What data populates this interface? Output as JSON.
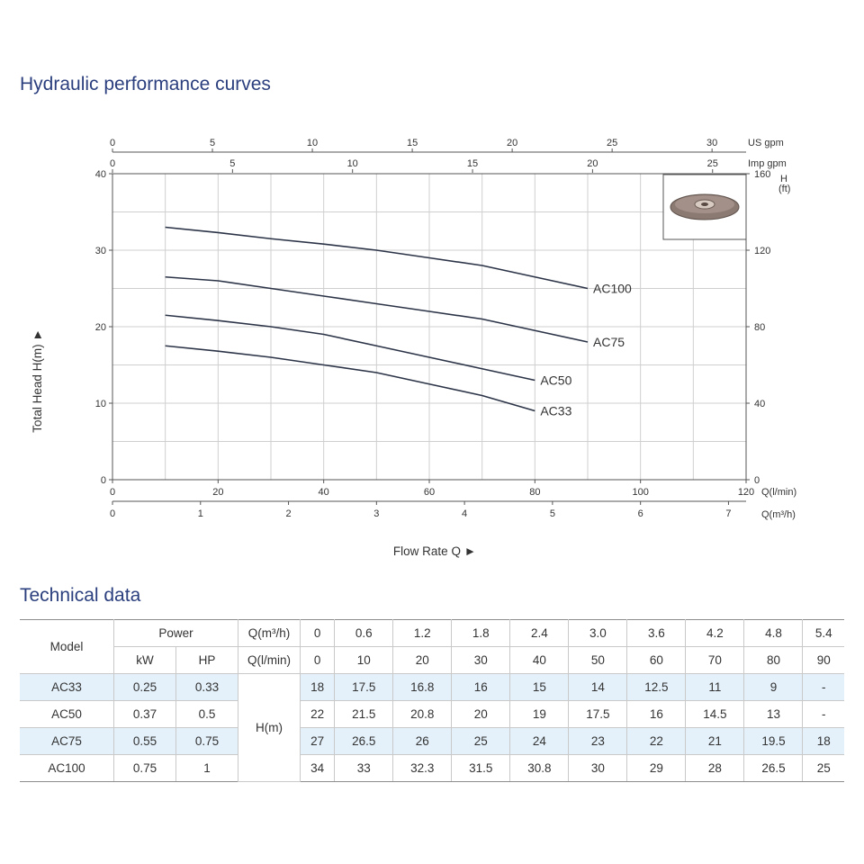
{
  "chart_section_title": "Hydraulic performance curves",
  "table_section_title": "Technical data",
  "chart_data": {
    "type": "line",
    "xlabel": "Flow Rate Q ►",
    "ylabel": "Total Head H(m) ►",
    "xlim": [
      0,
      120
    ],
    "ylim": [
      0,
      40
    ],
    "x_ticks": [
      0,
      20,
      40,
      60,
      80,
      100,
      120
    ],
    "y_ticks": [
      0,
      10,
      20,
      30,
      40
    ],
    "x_unit": "Q(l/min)",
    "x2_unit": "Q(m³/h)",
    "x2_ticks": [
      0,
      1,
      2,
      3,
      4,
      5,
      6,
      7
    ],
    "us_unit": "US gpm",
    "us_ticks": [
      0,
      5,
      10,
      15,
      20,
      25,
      30
    ],
    "imp_unit": "Imp gpm",
    "imp_ticks": [
      0,
      5,
      10,
      15,
      20,
      25
    ],
    "right_unit_line1": "H",
    "right_unit_line2": "(ft)",
    "right_ticks": [
      0,
      40,
      80,
      120,
      160
    ],
    "grid": true,
    "series": [
      {
        "name": "AC100",
        "x": [
          10,
          20,
          30,
          40,
          50,
          60,
          70,
          80,
          90
        ],
        "y": [
          33,
          32.3,
          31.5,
          30.8,
          30,
          29,
          28,
          26.5,
          25
        ]
      },
      {
        "name": "AC75",
        "x": [
          10,
          20,
          30,
          40,
          50,
          60,
          70,
          80,
          90
        ],
        "y": [
          26.5,
          26,
          25,
          24,
          23,
          22,
          21,
          19.5,
          18
        ]
      },
      {
        "name": "AC50",
        "x": [
          10,
          20,
          30,
          40,
          50,
          60,
          70,
          80
        ],
        "y": [
          21.5,
          20.8,
          20,
          19,
          17.5,
          16,
          14.5,
          13
        ]
      },
      {
        "name": "AC33",
        "x": [
          10,
          20,
          30,
          40,
          50,
          60,
          70,
          80
        ],
        "y": [
          17.5,
          16.8,
          16,
          15,
          14,
          12.5,
          11,
          9
        ]
      }
    ]
  },
  "table": {
    "model_header": "Model",
    "power_header": "Power",
    "kw_header": "kW",
    "hp_header": "HP",
    "q_m3h_label": "Q(m³/h)",
    "q_lmin_label": "Q(l/min)",
    "h_label": "H(m)",
    "q_m3h": [
      "0",
      "0.6",
      "1.2",
      "1.8",
      "2.4",
      "3.0",
      "3.6",
      "4.2",
      "4.8",
      "5.4"
    ],
    "q_lmin": [
      "0",
      "10",
      "20",
      "30",
      "40",
      "50",
      "60",
      "70",
      "80",
      "90"
    ],
    "rows": [
      {
        "model": "AC33",
        "kw": "0.25",
        "hp": "0.33",
        "h": [
          "18",
          "17.5",
          "16.8",
          "16",
          "15",
          "14",
          "12.5",
          "11",
          "9",
          "-"
        ]
      },
      {
        "model": "AC50",
        "kw": "0.37",
        "hp": "0.5",
        "h": [
          "22",
          "21.5",
          "20.8",
          "20",
          "19",
          "17.5",
          "16",
          "14.5",
          "13",
          "-"
        ]
      },
      {
        "model": "AC75",
        "kw": "0.55",
        "hp": "0.75",
        "h": [
          "27",
          "26.5",
          "26",
          "25",
          "24",
          "23",
          "22",
          "21",
          "19.5",
          "18"
        ]
      },
      {
        "model": "AC100",
        "kw": "0.75",
        "hp": "1",
        "h": [
          "34",
          "33",
          "32.3",
          "31.5",
          "30.8",
          "30",
          "29",
          "28",
          "26.5",
          "25"
        ]
      }
    ]
  },
  "colors": {
    "title": "#2b3f7e",
    "curve": "#2b3347",
    "row_shade": "#e4f1fa"
  }
}
